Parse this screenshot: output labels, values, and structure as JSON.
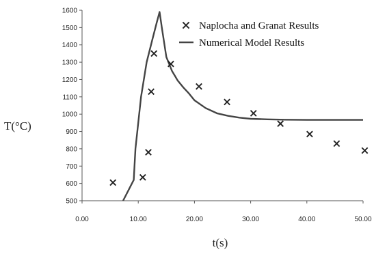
{
  "chart_data": {
    "type": "line",
    "xlabel": "t(s)",
    "ylabel": "T(°C)",
    "xlim": [
      0,
      50
    ],
    "ylim": [
      500,
      1600
    ],
    "x_ticks": [
      "0.00",
      "10.00",
      "20.00",
      "30.00",
      "40.00",
      "50.00"
    ],
    "y_ticks": [
      "500",
      "600",
      "700",
      "800",
      "900",
      "1000",
      "1100",
      "1200",
      "1300",
      "1400",
      "1500",
      "1600"
    ],
    "grid": false,
    "legend_position": "top-right",
    "series": [
      {
        "name": "Naplocha and Granat Results",
        "marker": "x",
        "color": "#222222",
        "x": [
          5.5,
          10.8,
          11.8,
          12.3,
          12.8,
          15.8,
          20.8,
          25.8,
          30.5,
          35.3,
          40.5,
          45.3,
          50.3
        ],
        "y": [
          605,
          635,
          780,
          1130,
          1350,
          1290,
          1160,
          1070,
          1005,
          945,
          885,
          830,
          790
        ]
      },
      {
        "name": "Numerical Model Results",
        "color": "#444444",
        "x": [
          7.3,
          9.2,
          9.5,
          10.5,
          11.5,
          12.5,
          13.3,
          13.8,
          14.2,
          15,
          16,
          17,
          18,
          19,
          20,
          22,
          24,
          26,
          28,
          30,
          33,
          36,
          40,
          45,
          50
        ],
        "y": [
          500,
          620,
          800,
          1100,
          1300,
          1430,
          1530,
          1590,
          1500,
          1330,
          1250,
          1195,
          1155,
          1120,
          1080,
          1035,
          1005,
          990,
          980,
          973,
          970,
          968,
          967,
          967,
          967
        ]
      }
    ]
  }
}
